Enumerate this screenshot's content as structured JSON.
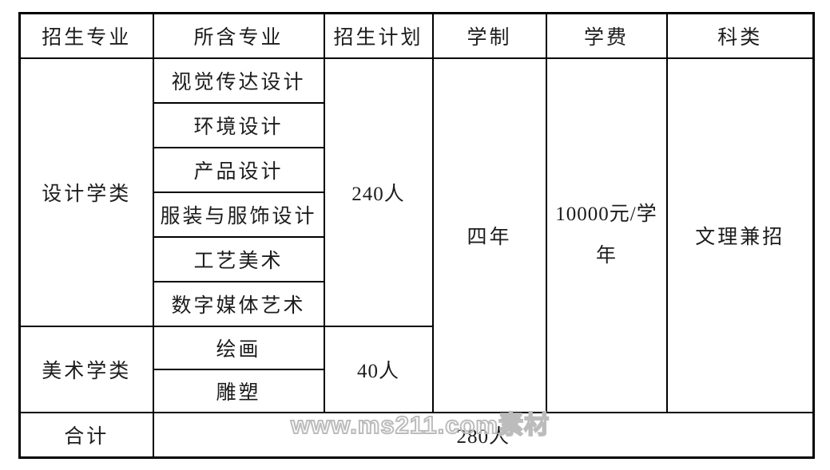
{
  "table": {
    "headers": [
      "招生专业",
      "所含专业",
      "招生计划",
      "学制",
      "学费",
      "科类"
    ],
    "groups": [
      {
        "major": "设计学类",
        "sub_majors": [
          "视觉传达设计",
          "环境设计",
          "产品设计",
          "服装与服饰设计",
          "工艺美术",
          "数字媒体艺术"
        ],
        "plan": "240人"
      },
      {
        "major": "美术学类",
        "sub_majors": [
          "绘画",
          "雕塑"
        ],
        "plan": "40人"
      }
    ],
    "duration": "四年",
    "tuition": "10000元/学年",
    "category": "文理兼招",
    "total_label": "合计",
    "total_plan": "280人"
  },
  "watermark": "www.ms211.com素材",
  "colors": {
    "border": "#000000",
    "text": "#1c1c1c",
    "watermark_stroke": "#bcbcbc"
  }
}
